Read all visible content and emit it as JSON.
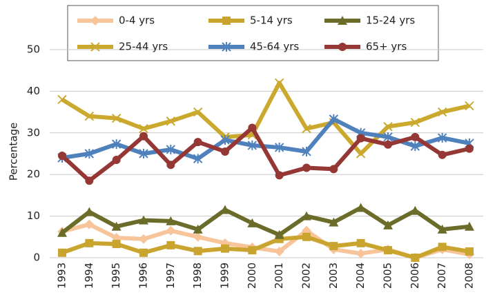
{
  "chart_data": {
    "type": "line",
    "y_label": "Percentage",
    "categories": [
      "1993",
      "1994",
      "1995",
      "1996",
      "1997",
      "1998",
      "1999",
      "2000",
      "2001",
      "2002",
      "2003",
      "2004",
      "2005",
      "2006",
      "2007",
      "2008"
    ],
    "ylim": [
      0,
      50
    ],
    "yticks": [
      0,
      10,
      20,
      30,
      40,
      50
    ],
    "grid": true,
    "series": [
      {
        "name": "0-4 yrs",
        "color": "#f8c49a",
        "marker": "diamond",
        "values": [
          6.3,
          8,
          4.8,
          4.5,
          6.5,
          5,
          3.5,
          2.5,
          1.5,
          6.5,
          2,
          1,
          2,
          0,
          2,
          0.8
        ]
      },
      {
        "name": "5-14 yrs",
        "color": "#c9a42f",
        "marker": "square",
        "values": [
          1.2,
          3.5,
          3.3,
          1.2,
          3,
          1.6,
          2.2,
          1.8,
          4.5,
          5,
          2.8,
          3.5,
          1.8,
          0,
          2.6,
          1.5
        ]
      },
      {
        "name": "15-24 yrs",
        "color": "#6b6b2a",
        "marker": "triangle",
        "values": [
          6,
          11,
          7.5,
          9,
          8.8,
          6.8,
          11.5,
          8.3,
          5.5,
          10,
          8.5,
          12,
          7.8,
          11.3,
          6.8,
          7.5
        ]
      },
      {
        "name": "25-44 yrs",
        "color": "#cba92e",
        "marker": "x",
        "values": [
          38,
          34,
          33.5,
          31,
          32.8,
          35,
          29,
          29.5,
          42,
          31,
          32.5,
          25,
          31.5,
          32.5,
          35,
          36.5
        ]
      },
      {
        "name": "45-64 yrs",
        "color": "#4f81bd",
        "marker": "star",
        "values": [
          24,
          25,
          27.3,
          25,
          26,
          23.8,
          28.3,
          27,
          26.5,
          25.5,
          33.3,
          30,
          29,
          26.8,
          28.8,
          27.5
        ]
      },
      {
        "name": "65+ yrs",
        "color": "#953735",
        "marker": "circle",
        "values": [
          24.5,
          18.5,
          23.5,
          29.2,
          22.3,
          27.8,
          25.5,
          31.2,
          19.8,
          21.6,
          21.3,
          28.7,
          27.2,
          29,
          24.7,
          26.2
        ]
      }
    ]
  }
}
